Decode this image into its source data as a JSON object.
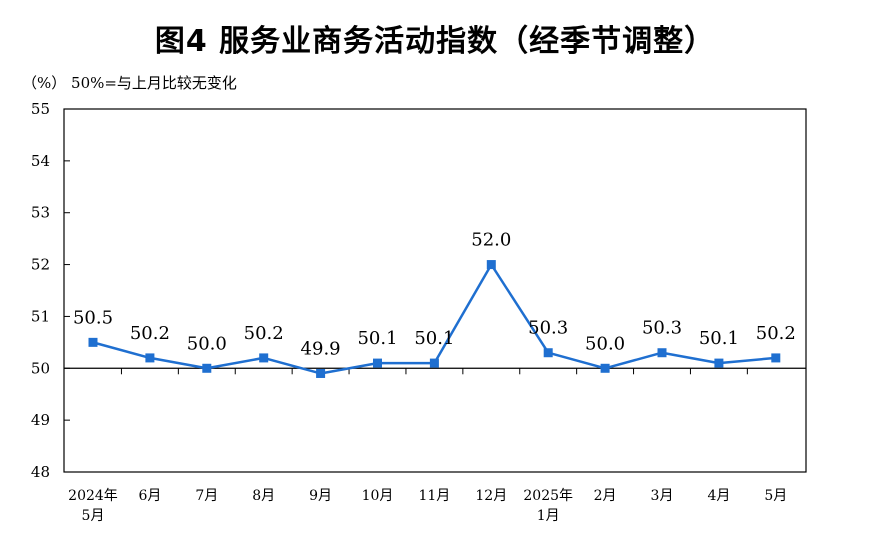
{
  "title": "图4  服务业商务活动指数（经季节调整）",
  "unit_note": "（%）  50%=与上月比较无变化",
  "colors": {
    "line": "#1f6fd0",
    "marker": "#1f6fd0",
    "axis": "#000000"
  },
  "chart_data": {
    "type": "line",
    "title": "图4  服务业商务活动指数（经季节调整）",
    "ylabel": "（%）",
    "ylim": [
      48,
      55
    ],
    "yticks": [
      48,
      49,
      50,
      51,
      52,
      53,
      54,
      55
    ],
    "reference_line": 50,
    "grid": false,
    "categories": [
      [
        "2024年",
        "5月"
      ],
      [
        "6月"
      ],
      [
        "7月"
      ],
      [
        "8月"
      ],
      [
        "9月"
      ],
      [
        "10月"
      ],
      [
        "11月"
      ],
      [
        "12月"
      ],
      [
        "2025年",
        "1月"
      ],
      [
        "2月"
      ],
      [
        "3月"
      ],
      [
        "4月"
      ],
      [
        "5月"
      ]
    ],
    "series": [
      {
        "values": [
          50.5,
          50.2,
          50.0,
          50.2,
          49.9,
          50.1,
          50.1,
          52.0,
          50.3,
          50.0,
          50.3,
          50.1,
          50.2
        ],
        "labels": [
          "50.5",
          "50.2",
          "50.0",
          "50.2",
          "49.9",
          "50.1",
          "50.1",
          "52.0",
          "50.3",
          "50.0",
          "50.3",
          "50.1",
          "50.2"
        ]
      }
    ]
  }
}
